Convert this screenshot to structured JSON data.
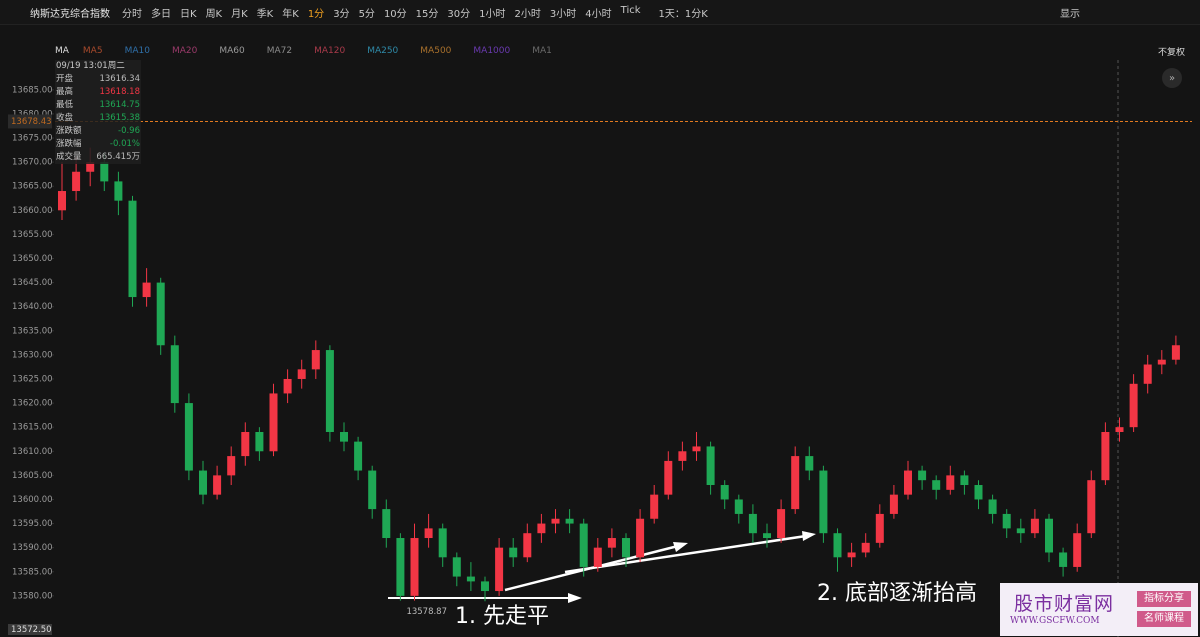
{
  "toolbar": {
    "symbol": "纳斯达克综合指数",
    "intervals": [
      "分时",
      "多日",
      "日K",
      "周K",
      "月K",
      "季K",
      "年K",
      "1分",
      "3分",
      "5分",
      "10分",
      "15分",
      "30分",
      "1小时",
      "2小时",
      "3小时",
      "4小时",
      "Tick"
    ],
    "range": "1天：1分K",
    "display": "显示"
  },
  "ma_bar": {
    "label": "MA",
    "items": [
      {
        "name": "MA5",
        "color": "#a84a2c"
      },
      {
        "name": "MA10",
        "color": "#2f6fa8"
      },
      {
        "name": "MA20",
        "color": "#9a3a6a"
      },
      {
        "name": "MA60",
        "color": "#9a9a9a"
      },
      {
        "name": "MA72",
        "color": "#8a8a8a"
      },
      {
        "name": "MA120",
        "color": "#a83a4a"
      },
      {
        "name": "MA250",
        "color": "#2f8aa8"
      },
      {
        "name": "MA500",
        "color": "#a8702c"
      },
      {
        "name": "MA1000",
        "color": "#6a3ab0"
      },
      {
        "name": "MA1",
        "color": "#6a6a6a"
      }
    ],
    "adjust": "不复权"
  },
  "info_panel": {
    "date": "09/19 13:01周二",
    "rows": [
      {
        "label": "开盘",
        "value": "13616.34"
      },
      {
        "label": "最高",
        "value": "13618.18"
      },
      {
        "label": "最低",
        "value": "13614.75"
      },
      {
        "label": "收盘",
        "value": "13615.38"
      },
      {
        "label": "涨跌额",
        "value": "-0.96"
      },
      {
        "label": "涨跌幅",
        "value": "-0.01%"
      },
      {
        "label": "成交量",
        "value": "665.415万"
      }
    ]
  },
  "chart_data": {
    "type": "candlestick",
    "open": [
      13660,
      13664,
      13668,
      13670,
      13666,
      13662,
      13642,
      13645,
      13632,
      13620,
      13606,
      13601,
      13605,
      13609,
      13614,
      13610,
      13622,
      13625,
      13627,
      13631,
      13614,
      13612,
      13606,
      13598,
      13592,
      13580,
      13592,
      13594,
      13588,
      13584,
      13583,
      13581,
      13590,
      13588,
      13593,
      13595,
      13596,
      13595,
      13586,
      13590,
      13592,
      13588,
      13596,
      13601,
      13608,
      13610,
      13611,
      13603,
      13600,
      13597,
      13593,
      13592,
      13598,
      13609,
      13606,
      13593,
      13588,
      13589,
      13591,
      13597,
      13601,
      13606,
      13604,
      13602,
      13605,
      13603,
      13600,
      13597,
      13594,
      13593,
      13596,
      13589,
      13586,
      13593,
      13604,
      13614,
      13615,
      13624,
      13628,
      13629
    ],
    "high": [
      13670,
      13671,
      13673,
      13672,
      13668,
      13663,
      13648,
      13646,
      13634,
      13622,
      13608,
      13607,
      13611,
      13616,
      13615,
      13624,
      13627,
      13629,
      13633,
      13632,
      13616,
      13613,
      13607,
      13600,
      13593,
      13595,
      13597,
      13595,
      13589,
      13587,
      13584,
      13592,
      13592,
      13595,
      13597,
      13598,
      13598,
      13596,
      13592,
      13594,
      13593,
      13598,
      13603,
      13610,
      13612,
      13614,
      13612,
      13604,
      13601,
      13599,
      13595,
      13600,
      13611,
      13611,
      13607,
      13594,
      13591,
      13593,
      13599,
      13603,
      13608,
      13607,
      13605,
      13607,
      13606,
      13604,
      13601,
      13598,
      13596,
      13598,
      13597,
      13590,
      13595,
      13606,
      13616,
      13617,
      13626,
      13630,
      13631,
      13634
    ],
    "low": [
      13658,
      13662,
      13665,
      13664,
      13659,
      13640,
      13640,
      13630,
      13618,
      13604,
      13599,
      13600,
      13603,
      13607,
      13608,
      13609,
      13620,
      13623,
      13625,
      13612,
      13610,
      13604,
      13596,
      13590,
      13579,
      13579,
      13590,
      13586,
      13582,
      13581,
      13578.87,
      13580,
      13586,
      13587,
      13591,
      13593,
      13593,
      13584,
      13585,
      13588,
      13586,
      13587,
      13595,
      13600,
      13606,
      13608,
      13601,
      13598,
      13595,
      13591,
      13590,
      13591,
      13597,
      13604,
      13591,
      13585,
      13586,
      13588,
      13590,
      13596,
      13600,
      13602,
      13600,
      13601,
      13601,
      13598,
      13595,
      13592,
      13591,
      13592,
      13587,
      13584,
      13585,
      13592,
      13603,
      13612,
      13614,
      13622,
      13626,
      13628
    ],
    "close": [
      13664,
      13668,
      13670,
      13666,
      13662,
      13642,
      13645,
      13632,
      13620,
      13606,
      13601,
      13605,
      13609,
      13614,
      13610,
      13622,
      13625,
      13627,
      13631,
      13614,
      13612,
      13606,
      13598,
      13592,
      13580,
      13592,
      13594,
      13588,
      13584,
      13583,
      13581,
      13590,
      13588,
      13593,
      13595,
      13596,
      13595,
      13586,
      13590,
      13592,
      13588,
      13596,
      13601,
      13608,
      13610,
      13611,
      13603,
      13600,
      13597,
      13593,
      13592,
      13598,
      13609,
      13606,
      13593,
      13588,
      13589,
      13591,
      13597,
      13601,
      13606,
      13604,
      13602,
      13605,
      13603,
      13600,
      13597,
      13594,
      13593,
      13596,
      13589,
      13586,
      13593,
      13604,
      13614,
      13615,
      13624,
      13628,
      13629,
      13632
    ],
    "up_color": "#f23645",
    "down_color": "#1fa855",
    "ylim": [
      13572.5,
      13694.3
    ],
    "yticks": [
      {
        "value": 13580,
        "label": "13580.00"
      },
      {
        "value": 13585,
        "label": "13585.00"
      },
      {
        "value": 13590,
        "label": "13590.00"
      },
      {
        "value": 13595,
        "label": "13595.00"
      },
      {
        "value": 13600,
        "label": "13600.00"
      },
      {
        "value": 13605,
        "label": "13605.00"
      },
      {
        "value": 13610,
        "label": "13610.00"
      },
      {
        "value": 13615,
        "label": "13615.00"
      },
      {
        "value": 13620,
        "label": "13620.00"
      },
      {
        "value": 13625,
        "label": "13625.00"
      },
      {
        "value": 13630,
        "label": "13630.00"
      },
      {
        "value": 13635,
        "label": "13635.00"
      },
      {
        "value": 13640,
        "label": "13640.00"
      },
      {
        "value": 13645,
        "label": "13645.00"
      },
      {
        "value": 13650,
        "label": "13650.00"
      },
      {
        "value": 13655,
        "label": "13655.00"
      },
      {
        "value": 13660,
        "label": "13660.00"
      },
      {
        "value": 13665,
        "label": "13665.00"
      },
      {
        "value": 13670,
        "label": "13670.00"
      },
      {
        "value": 13675,
        "label": "13675.00"
      },
      {
        "value": 13680,
        "label": "13680.00"
      },
      {
        "value": 13685,
        "label": "13685.00"
      }
    ],
    "last_price": {
      "value": 13678.43,
      "label": "13678.43"
    },
    "crosshair_price": {
      "value": 13572.5,
      "label": "13572.50"
    },
    "annotations": [
      "1. 先走平",
      "2. 底部逐渐抬高"
    ]
  },
  "watermark": {
    "name": "股市财富网",
    "url": "WWW.GSCFW.COM",
    "tags": [
      "指标分享",
      "名师课程"
    ]
  }
}
